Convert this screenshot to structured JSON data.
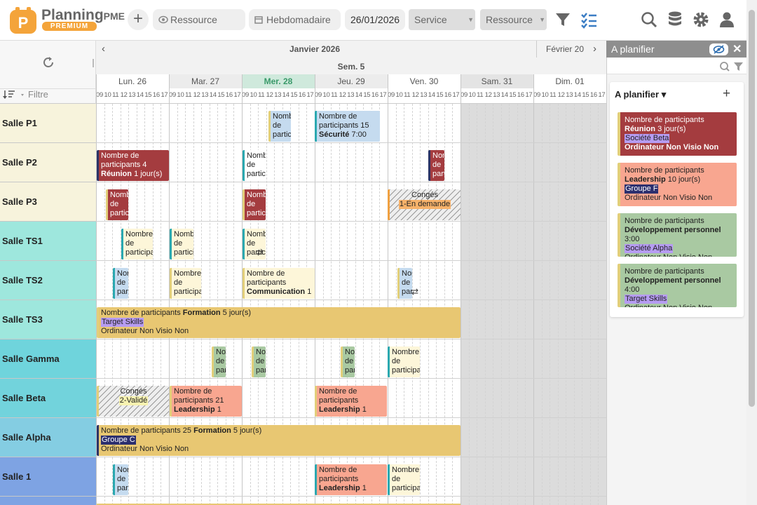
{
  "header": {
    "brand": "Planning",
    "brand_suffix": "PME",
    "badge": "PREMIUM",
    "resource_search": "Ressource",
    "view": "Hebdomadaire",
    "date": "26/01/2026",
    "service": "Service",
    "resource_filter": "Ressource"
  },
  "filter": "Filtre",
  "rows": [
    "Salle P1",
    "Salle P2",
    "Salle P3",
    "Salle TS1",
    "Salle TS2",
    "Salle TS3",
    "Salle Gamma",
    "Salle Beta",
    "Salle Alpha",
    "Salle 1"
  ],
  "calendar": {
    "month": "Janvier 2026",
    "next_month": "Février 20",
    "week": "Sem. 5",
    "days": [
      "Lun. 26",
      "Mar. 27",
      "Mer. 28",
      "Jeu. 29",
      "Ven. 30",
      "Sam. 31",
      "Dim. 01"
    ],
    "hours": [
      "09",
      "10",
      "11",
      "12",
      "13",
      "14",
      "15",
      "16",
      "17"
    ],
    "events": [
      {
        "text": "Nombre de participants"
      },
      {
        "text": "Nombre de participants 15",
        "bold": "Sécurité",
        "after": "7:00"
      },
      {
        "text": "Nombre de participants 4",
        "bold": "Réunion",
        "after": "1 jour(s)"
      },
      {
        "text": "Nombre de participants"
      },
      {
        "text": "Nombre de participants"
      },
      {
        "text": "Nombre de participants"
      },
      {
        "text": "Nombre de participants"
      },
      {
        "text": "Congés",
        "status": "1-En demande"
      },
      {
        "text": "Nombre de participants"
      },
      {
        "text": "Nombre de participants"
      },
      {
        "text": "Nombre de participants"
      },
      {
        "text": "Nombre de participants"
      },
      {
        "text": "Nombre de participants"
      },
      {
        "text": "Nombre de participants",
        "bold": "Communication",
        "after": "1"
      },
      {
        "text": "Nombre de participants"
      },
      {
        "text": "Nombre de participants",
        "bold": "Formation",
        "after": "5 jour(s)",
        "tag": "Target Skills",
        "footer": "Ordinateur Non Visio Non"
      },
      {
        "text": "Nombre de participants"
      },
      {
        "text": "Nombre de participants"
      },
      {
        "text": "Nombre de participants"
      },
      {
        "text": "Nombre de participants"
      },
      {
        "text": "Congés",
        "status": "2-Validé"
      },
      {
        "text": "Nombre de participants 21",
        "bold": "Leadership",
        "after": "1"
      },
      {
        "text": "Nombre de participants",
        "bold": "Leadership",
        "after": "1"
      },
      {
        "text": "Nombre de participants 25",
        "bold": "Formation",
        "after": "5 jour(s)",
        "tag": "Groupe C",
        "footer": "Ordinateur Non Visio Non"
      },
      {
        "text": "Nombre de participants"
      },
      {
        "text": "Nombre de participants",
        "bold": "Leadership",
        "after": "1"
      },
      {
        "text": "Nombre de participants"
      }
    ]
  },
  "panel": {
    "title": "A planifier",
    "section": "A planifier",
    "cards": [
      {
        "text": "Nombre de participants",
        "bold": "Réunion",
        "after": "3 jour(s)",
        "tag": "Société Beta",
        "footer": "Ordinateur Non Visio Non"
      },
      {
        "text": "Nombre de participants",
        "bold": "Leadership",
        "after": "10 jour(s)",
        "tag": "Groupe F",
        "footer": "Ordinateur Non Visio Non"
      },
      {
        "text": "Nombre de participants",
        "bold": "Développement personnel",
        "after": "3:00",
        "tag": "Société Alpha",
        "footer": "Ordinateur Non Visio Non"
      },
      {
        "text": "Nombre de participants",
        "bold": "Développement personnel",
        "after": "4:00",
        "tag": "Target Skills",
        "footer": "Ordinateur Non Visio Non"
      }
    ]
  }
}
